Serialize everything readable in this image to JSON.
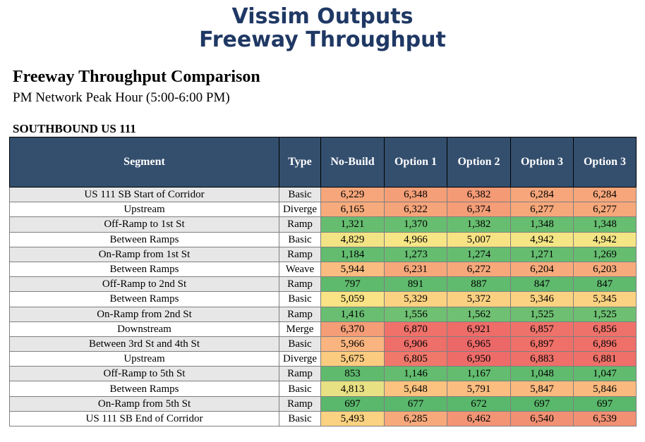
{
  "header": {
    "title_line1": "Vissim Outputs",
    "title_line2": "Freeway Throughput"
  },
  "report": {
    "heading": "Freeway Throughput Comparison",
    "subheading": "PM Network Peak Hour (5:00-6:00 PM)",
    "section": "SOUTHBOUND US 111"
  },
  "table": {
    "columns": [
      "Segment",
      "Type",
      "No-Build",
      "Option 1",
      "Option 2",
      "Option 3",
      "Option 3"
    ],
    "rows": [
      {
        "segment": "US 111 SB Start of Corridor",
        "type": "Basic",
        "values": [
          "6,229",
          "6,348",
          "6,382",
          "6,284",
          "6,284"
        ],
        "colors": [
          "#f6a67a",
          "#f49f77",
          "#f49a75",
          "#f6a67a",
          "#f6a67a"
        ]
      },
      {
        "segment": "Upstream",
        "type": "Diverge",
        "values": [
          "6,165",
          "6,322",
          "6,374",
          "6,277",
          "6,277"
        ],
        "colors": [
          "#f7ab7c",
          "#f6a47a",
          "#f49d76",
          "#f6a87b",
          "#f6a87b"
        ]
      },
      {
        "segment": "Off-Ramp to 1st St",
        "type": "Ramp",
        "values": [
          "1,321",
          "1,370",
          "1,382",
          "1,348",
          "1,348"
        ],
        "colors": [
          "#66bd70",
          "#68be70",
          "#68be70",
          "#67bd70",
          "#67bd70"
        ]
      },
      {
        "segment": "Between Ramps",
        "type": "Basic",
        "values": [
          "4,829",
          "4,966",
          "5,007",
          "4,942",
          "4,942"
        ],
        "colors": [
          "#f2e485",
          "#f6e685",
          "#f8e384",
          "#f4e585",
          "#f4e585"
        ]
      },
      {
        "segment": "On-Ramp from 1st St",
        "type": "Ramp",
        "values": [
          "1,184",
          "1,273",
          "1,274",
          "1,271",
          "1,269"
        ],
        "colors": [
          "#63bc6f",
          "#66bd70",
          "#66bd70",
          "#66bd70",
          "#66bd70"
        ]
      },
      {
        "segment": "Between Ramps",
        "type": "Weave",
        "values": [
          "5,944",
          "6,231",
          "6,272",
          "6,204",
          "6,203"
        ],
        "colors": [
          "#fabc80",
          "#f6a87b",
          "#f6a87b",
          "#f7ab7c",
          "#f7ab7c"
        ]
      },
      {
        "segment": "Off-Ramp to 2nd St",
        "type": "Ramp",
        "values": [
          "797",
          "891",
          "887",
          "847",
          "847"
        ],
        "colors": [
          "#5eba6d",
          "#60bb6e",
          "#60bb6e",
          "#5fba6e",
          "#5fba6e"
        ]
      },
      {
        "segment": "Between Ramps",
        "type": "Basic",
        "values": [
          "5,059",
          "5,329",
          "5,372",
          "5,346",
          "5,345"
        ],
        "colors": [
          "#f9e384",
          "#fbd281",
          "#fbd081",
          "#fbd281",
          "#fbd281"
        ]
      },
      {
        "segment": "On-Ramp from 2nd St",
        "type": "Ramp",
        "values": [
          "1,416",
          "1,556",
          "1,562",
          "1,525",
          "1,525"
        ],
        "colors": [
          "#69be71",
          "#6fc072",
          "#6fc072",
          "#6ebf72",
          "#6ebf72"
        ]
      },
      {
        "segment": "Downstream",
        "type": "Merge",
        "values": [
          "6,370",
          "6,870",
          "6,921",
          "6,857",
          "6,856"
        ],
        "colors": [
          "#f49d76",
          "#ef716a",
          "#ee6d69",
          "#ef726a",
          "#ef726a"
        ]
      },
      {
        "segment": "Between 3rd St and 4th St",
        "type": "Basic",
        "values": [
          "5,966",
          "6,906",
          "6,965",
          "6,897",
          "6,896"
        ],
        "colors": [
          "#fab47f",
          "#ee6e69",
          "#ec6868",
          "#ef6f69",
          "#ef6f69"
        ]
      },
      {
        "segment": "Upstream",
        "type": "Diverge",
        "values": [
          "5,675",
          "6,805",
          "6,950",
          "6,883",
          "6,881"
        ],
        "colors": [
          "#fbcb80",
          "#f0786b",
          "#ed6b68",
          "#ee7069",
          "#ee7069"
        ]
      },
      {
        "segment": "Off-Ramp to 5th St",
        "type": "Ramp",
        "values": [
          "853",
          "1,146",
          "1,167",
          "1,048",
          "1,047"
        ],
        "colors": [
          "#5fba6e",
          "#63bc6f",
          "#63bc6f",
          "#61bb6f",
          "#61bb6f"
        ]
      },
      {
        "segment": "Between Ramps",
        "type": "Basic",
        "values": [
          "4,813",
          "5,648",
          "5,791",
          "5,847",
          "5,846"
        ],
        "colors": [
          "#e8e184",
          "#fbc37f",
          "#fbbd80",
          "#fab97f",
          "#fab97f"
        ]
      },
      {
        "segment": "On-Ramp from 5th St",
        "type": "Ramp",
        "values": [
          "697",
          "677",
          "672",
          "697",
          "697"
        ],
        "colors": [
          "#5ab86c",
          "#5ab86c",
          "#5ab86c",
          "#5ab86c",
          "#5ab86c"
        ]
      },
      {
        "segment": "US 111 SB End of Corridor",
        "type": "Basic",
        "values": [
          "5,493",
          "6,285",
          "6,462",
          "6,540",
          "6,539"
        ],
        "colors": [
          "#fbd281",
          "#f7a97b",
          "#f39474",
          "#f29073",
          "#f29073"
        ]
      }
    ]
  }
}
